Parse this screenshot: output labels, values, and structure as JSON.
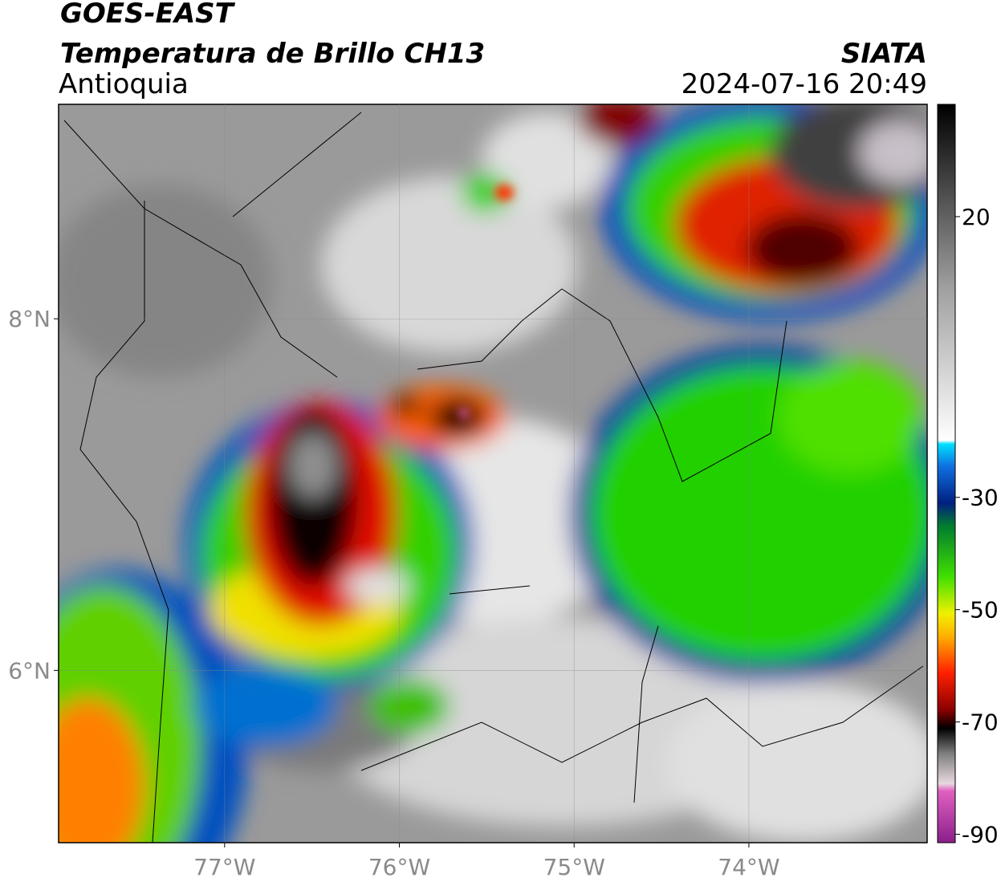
{
  "header": {
    "satellite": "GOES-EAST",
    "product": "Temperatura de Brillo CH13",
    "region": "Antioquia",
    "agency": "SIATA",
    "datetime": "2024-07-16 20:49"
  },
  "map": {
    "xlim": [
      -77.95,
      -72.98
    ],
    "ylim": [
      5.02,
      9.22
    ],
    "xticks": [
      {
        "value": -77,
        "label": "77°W"
      },
      {
        "value": -76,
        "label": "76°W"
      },
      {
        "value": -75,
        "label": "75°W"
      },
      {
        "value": -74,
        "label": "74°W"
      }
    ],
    "yticks": [
      {
        "value": 6,
        "label": "6°N"
      },
      {
        "value": 8,
        "label": "8°N"
      }
    ],
    "grid": true
  },
  "colorbar": {
    "lim": [
      -91.5,
      40
    ],
    "ticks": [
      20,
      -30,
      -50,
      -70,
      -90
    ]
  }
}
